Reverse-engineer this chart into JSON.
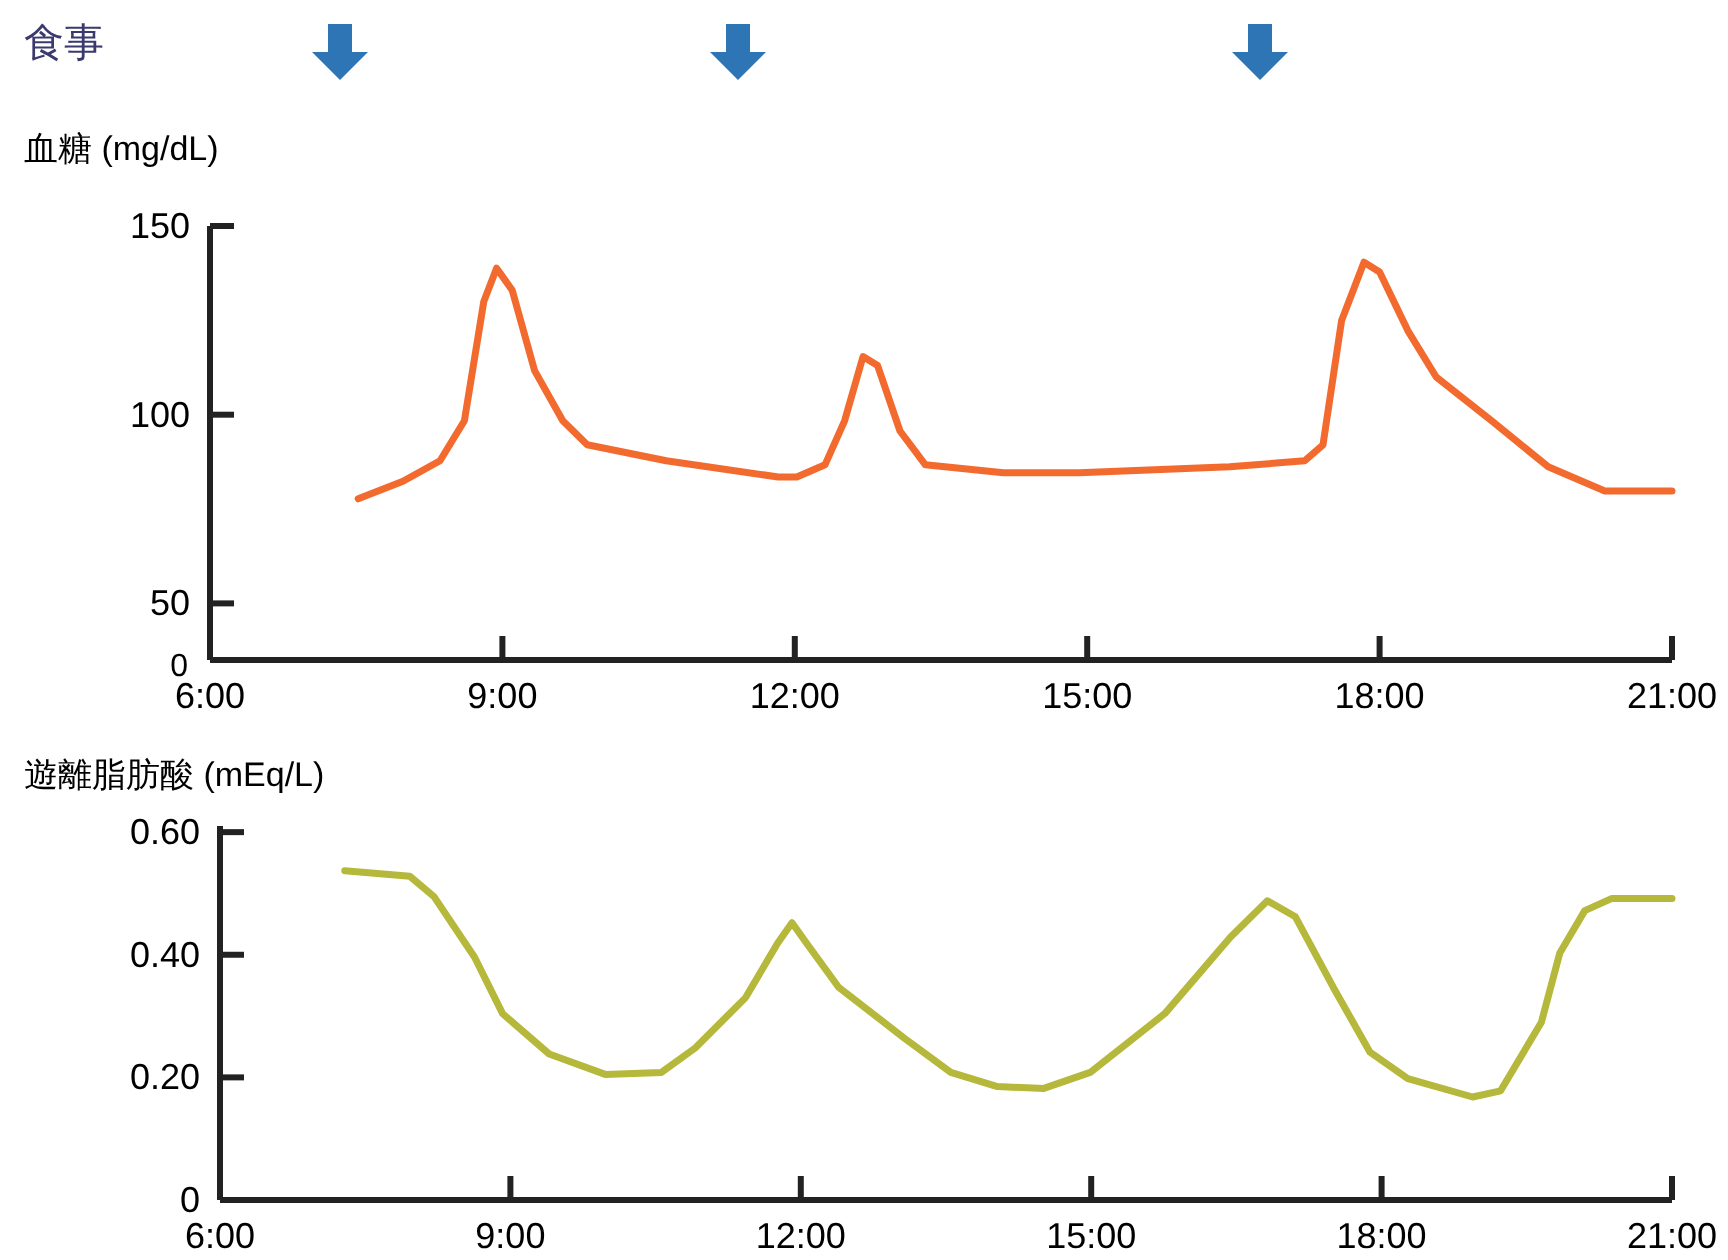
{
  "chart_data": [
    {
      "type": "line",
      "ylabel": "血糖 (mg/dL)",
      "annotations": [
        "食事",
        "0"
      ],
      "xlim": [
        6,
        21
      ],
      "xticks": [
        {
          "value": 6,
          "label": "6:00"
        },
        {
          "value": 9,
          "label": "9:00"
        },
        {
          "value": 12,
          "label": "12:00"
        },
        {
          "value": 15,
          "label": "15:00"
        },
        {
          "value": 18,
          "label": "18:00"
        },
        {
          "value": 21,
          "label": "21:00"
        }
      ],
      "ylim": [
        35,
        150
      ],
      "yticks": [
        50,
        100,
        150
      ],
      "series": [
        {
          "color": "#f26a2e",
          "x": [
            7.52,
            7.98,
            8.36,
            8.61,
            8.81,
            8.94,
            9.1,
            9.33,
            9.62,
            9.87,
            10.68,
            11.83,
            12.02,
            12.31,
            12.51,
            12.7,
            12.85,
            13.08,
            13.34,
            14.14,
            14.92,
            16.46,
            17.23,
            17.42,
            17.61,
            17.84,
            18.0,
            18.29,
            18.58,
            19.15,
            19.73,
            20.31,
            21.0
          ],
          "values": [
            77.7,
            82.4,
            87.8,
            98.4,
            130,
            138.8,
            133,
            111.7,
            98.4,
            92,
            87.8,
            83.5,
            83.5,
            86.7,
            98.4,
            115.4,
            113,
            95.7,
            86.7,
            84.6,
            84.6,
            86.2,
            87.8,
            92,
            125,
            140.4,
            137.8,
            122.3,
            110,
            98.4,
            86.2,
            79.8,
            79.8
          ]
        }
      ]
    },
    {
      "type": "line",
      "ylabel": "遊離脂肪酸 (mEq/L)",
      "xlim": [
        6,
        21
      ],
      "xticks": [
        {
          "value": 6,
          "label": "6:00"
        },
        {
          "value": 9,
          "label": "9:00"
        },
        {
          "value": 12,
          "label": "12:00"
        },
        {
          "value": 15,
          "label": "15:00"
        },
        {
          "value": 18,
          "label": "18:00"
        },
        {
          "value": 21,
          "label": "21:00"
        }
      ],
      "ylim": [
        0,
        0.61
      ],
      "yticks": [
        0,
        {
          "value": 0.2,
          "label": "0.20"
        },
        {
          "value": 0.4,
          "label": "0.40"
        },
        {
          "value": 0.6,
          "label": "0.60"
        }
      ],
      "series": [
        {
          "color": "#b5b83a",
          "x": [
            7.29,
            7.96,
            8.21,
            8.63,
            8.92,
            9.4,
            9.98,
            10.56,
            10.91,
            11.43,
            11.76,
            11.91,
            12.06,
            12.39,
            13.07,
            13.55,
            14.03,
            14.51,
            14.99,
            15.76,
            16.44,
            16.82,
            17.11,
            17.5,
            17.88,
            18.27,
            18.94,
            19.23,
            19.65,
            19.84,
            20.1,
            20.38,
            21.0
          ],
          "values": [
            0.537,
            0.528,
            0.495,
            0.396,
            0.304,
            0.238,
            0.205,
            0.208,
            0.248,
            0.33,
            0.419,
            0.452,
            0.419,
            0.347,
            0.264,
            0.208,
            0.185,
            0.182,
            0.208,
            0.304,
            0.429,
            0.488,
            0.462,
            0.347,
            0.241,
            0.198,
            0.168,
            0.178,
            0.29,
            0.403,
            0.472,
            0.492,
            0.492
          ]
        }
      ]
    }
  ]
}
